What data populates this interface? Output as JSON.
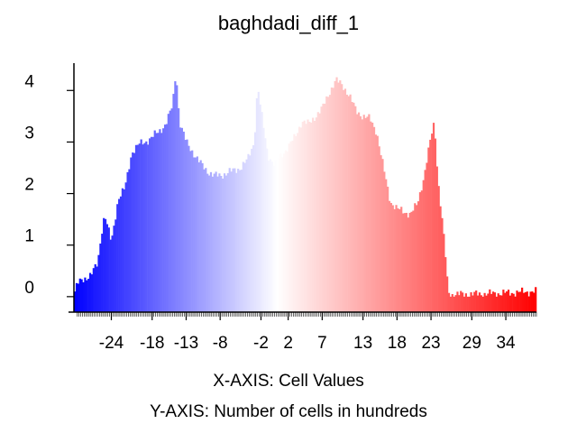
{
  "chart_data": {
    "type": "bar",
    "title": "baghdadi_diff_1",
    "xlabel": "X-AXIS: Cell Values",
    "ylabel": "Y-AXIS: Number of cells in hundreds",
    "x_ticks": [
      "-24",
      "-18",
      "-13",
      "-8",
      "-2",
      "2",
      "7",
      "13",
      "18",
      "23",
      "29",
      "34"
    ],
    "x_tick_values": [
      -24,
      -18,
      -13,
      -8,
      -2,
      2,
      7,
      13,
      18,
      23,
      29,
      34
    ],
    "y_ticks": [
      "0",
      "1",
      "2",
      "3",
      "4"
    ],
    "y_tick_values": [
      0,
      1,
      2,
      3,
      4
    ],
    "xlim": [
      -29.5,
      38.5
    ],
    "ylim": [
      -0.3,
      4.6
    ],
    "color_scale": {
      "low": "#0000ff",
      "mid": "#ffffff",
      "high": "#ff0000"
    },
    "grid": false,
    "profile": [
      [
        -29.5,
        0.05
      ],
      [
        -29,
        0.25
      ],
      [
        -28,
        0.35
      ],
      [
        -27,
        0.42
      ],
      [
        -26,
        0.65
      ],
      [
        -25.5,
        1.2
      ],
      [
        -25,
        1.6
      ],
      [
        -24,
        1.05
      ],
      [
        -23,
        1.9
      ],
      [
        -22,
        2.1
      ],
      [
        -21,
        2.8
      ],
      [
        -20,
        2.95
      ],
      [
        -19,
        3.0
      ],
      [
        -18,
        3.1
      ],
      [
        -17,
        3.2
      ],
      [
        -16,
        3.35
      ],
      [
        -15,
        3.7
      ],
      [
        -14.5,
        4.4
      ],
      [
        -14,
        3.4
      ],
      [
        -13,
        3.0
      ],
      [
        -12,
        2.8
      ],
      [
        -11,
        2.6
      ],
      [
        -10,
        2.45
      ],
      [
        -9,
        2.35
      ],
      [
        -8,
        2.35
      ],
      [
        -7,
        2.4
      ],
      [
        -6,
        2.45
      ],
      [
        -5,
        2.5
      ],
      [
        -4,
        2.65
      ],
      [
        -3,
        3.0
      ],
      [
        -2.5,
        4.1
      ],
      [
        -2,
        3.6
      ],
      [
        -1,
        2.75
      ],
      [
        0,
        2.55
      ],
      [
        1,
        2.75
      ],
      [
        2,
        2.9
      ],
      [
        3,
        3.1
      ],
      [
        4,
        3.4
      ],
      [
        5,
        3.35
      ],
      [
        6,
        3.5
      ],
      [
        7,
        3.65
      ],
      [
        8,
        3.95
      ],
      [
        9,
        4.2
      ],
      [
        10,
        4.1
      ],
      [
        11,
        3.9
      ],
      [
        12,
        3.6
      ],
      [
        13,
        3.5
      ],
      [
        14,
        3.45
      ],
      [
        15,
        3.2
      ],
      [
        16,
        2.5
      ],
      [
        17,
        1.85
      ],
      [
        18,
        1.7
      ],
      [
        19,
        1.65
      ],
      [
        20,
        1.6
      ],
      [
        21,
        1.8
      ],
      [
        22,
        2.35
      ],
      [
        23,
        3.1
      ],
      [
        23.5,
        3.4
      ],
      [
        24,
        2.3
      ],
      [
        25,
        1.0
      ],
      [
        25.5,
        0.1
      ],
      [
        26,
        0.04
      ],
      [
        30,
        0.05
      ],
      [
        34,
        0.07
      ],
      [
        38,
        0.1
      ]
    ]
  }
}
